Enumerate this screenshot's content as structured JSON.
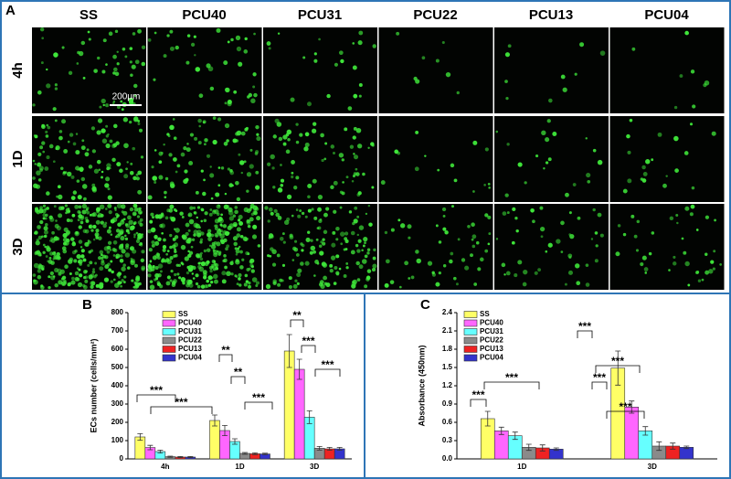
{
  "panel_a": {
    "label": "A",
    "columns": [
      "SS",
      "PCU40",
      "PCU31",
      "PCU22",
      "PCU13",
      "PCU04"
    ],
    "rows": [
      "4h",
      "1D",
      "3D"
    ],
    "scale_bar": "200μm"
  },
  "chart_data": [
    {
      "type": "bar",
      "label": "B",
      "ylabel": "ECs number (cells/mm²)",
      "categories": [
        "4h",
        "1D",
        "3D"
      ],
      "series": [
        {
          "name": "SS",
          "color": "#ffff66",
          "values": [
            120,
            210,
            590
          ],
          "errors": [
            18,
            30,
            90
          ]
        },
        {
          "name": "PCU40",
          "color": "#ff66ff",
          "values": [
            62,
            155,
            490
          ],
          "errors": [
            12,
            28,
            55
          ]
        },
        {
          "name": "PCU31",
          "color": "#66ffff",
          "values": [
            40,
            95,
            228
          ],
          "errors": [
            8,
            15,
            35
          ]
        },
        {
          "name": "PCU22",
          "color": "#8a8a8a",
          "values": [
            12,
            30,
            58
          ],
          "errors": [
            3,
            5,
            10
          ]
        },
        {
          "name": "PCU13",
          "color": "#ee2222",
          "values": [
            10,
            28,
            55
          ],
          "errors": [
            3,
            5,
            8
          ]
        },
        {
          "name": "PCU04",
          "color": "#3333cc",
          "values": [
            10,
            27,
            55
          ],
          "errors": [
            3,
            4,
            8
          ]
        }
      ],
      "ylim": [
        0,
        800
      ],
      "yticks": [
        0,
        100,
        200,
        300,
        400,
        500,
        600,
        700,
        800
      ],
      "annotations": [
        "***",
        "***",
        "**",
        "**",
        "***",
        "**",
        "***",
        "***"
      ]
    },
    {
      "type": "bar",
      "label": "C",
      "ylabel": "Absorbance (450nm)",
      "categories": [
        "1D",
        "3D"
      ],
      "series": [
        {
          "name": "SS",
          "color": "#ffff66",
          "values": [
            0.66,
            1.49
          ],
          "errors": [
            0.12,
            0.28
          ]
        },
        {
          "name": "PCU40",
          "color": "#ff66ff",
          "values": [
            0.46,
            0.85
          ],
          "errors": [
            0.06,
            0.1
          ]
        },
        {
          "name": "PCU31",
          "color": "#66ffff",
          "values": [
            0.38,
            0.46
          ],
          "errors": [
            0.06,
            0.07
          ]
        },
        {
          "name": "PCU22",
          "color": "#8a8a8a",
          "values": [
            0.19,
            0.21
          ],
          "errors": [
            0.05,
            0.07
          ]
        },
        {
          "name": "PCU13",
          "color": "#ee2222",
          "values": [
            0.18,
            0.21
          ],
          "errors": [
            0.05,
            0.05
          ]
        },
        {
          "name": "PCU04",
          "color": "#3333cc",
          "values": [
            0.16,
            0.19
          ],
          "errors": [
            0.02,
            0.02
          ]
        }
      ],
      "ylim": [
        0,
        2.4
      ],
      "yticks": [
        {
          "value": 0,
          "label": "0.0"
        },
        0.3,
        0.6,
        0.9,
        1.2,
        1.5,
        1.8,
        2.1,
        2.4
      ],
      "annotations": [
        "***",
        "***",
        "***",
        "***",
        "***",
        "***"
      ]
    }
  ]
}
